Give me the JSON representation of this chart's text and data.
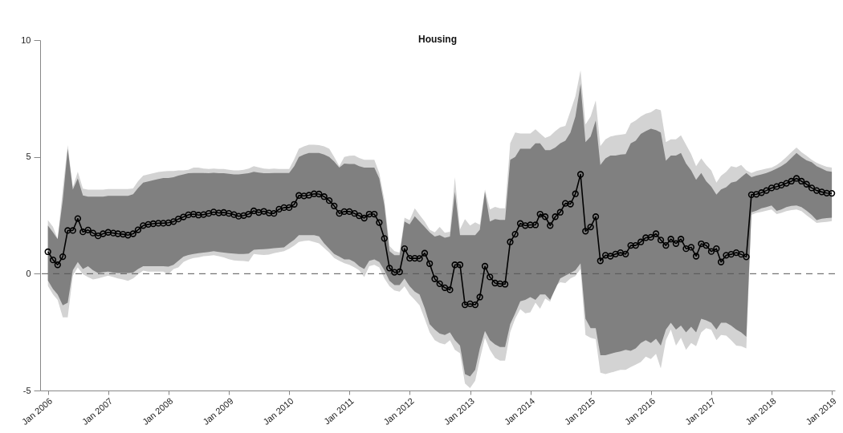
{
  "chart_data": {
    "type": "line",
    "title": "Housing",
    "x": [
      "2006-01",
      "2006-02",
      "2006-03",
      "2006-04",
      "2006-05",
      "2006-06",
      "2006-07",
      "2006-08",
      "2006-09",
      "2006-10",
      "2006-11",
      "2006-12",
      "2007-01",
      "2007-02",
      "2007-03",
      "2007-04",
      "2007-05",
      "2007-06",
      "2007-07",
      "2007-08",
      "2007-09",
      "2007-10",
      "2007-11",
      "2007-12",
      "2008-01",
      "2008-02",
      "2008-03",
      "2008-04",
      "2008-05",
      "2008-06",
      "2008-07",
      "2008-08",
      "2008-09",
      "2008-10",
      "2008-11",
      "2008-12",
      "2009-01",
      "2009-02",
      "2009-03",
      "2009-04",
      "2009-05",
      "2009-06",
      "2009-07",
      "2009-08",
      "2009-09",
      "2009-10",
      "2009-11",
      "2009-12",
      "2010-01",
      "2010-02",
      "2010-03",
      "2010-04",
      "2010-05",
      "2010-06",
      "2010-07",
      "2010-08",
      "2010-09",
      "2010-10",
      "2010-11",
      "2010-12",
      "2011-01",
      "2011-02",
      "2011-03",
      "2011-04",
      "2011-05",
      "2011-06",
      "2011-07",
      "2011-08",
      "2011-09",
      "2011-10",
      "2011-11",
      "2011-12",
      "2012-01",
      "2012-02",
      "2012-03",
      "2012-04",
      "2012-05",
      "2012-06",
      "2012-07",
      "2012-08",
      "2012-09",
      "2012-10",
      "2012-11",
      "2012-12",
      "2013-01",
      "2013-02",
      "2013-03",
      "2013-04",
      "2013-05",
      "2013-06",
      "2013-07",
      "2013-08",
      "2013-09",
      "2013-10",
      "2013-11",
      "2013-12",
      "2014-01",
      "2014-02",
      "2014-03",
      "2014-04",
      "2014-05",
      "2014-06",
      "2014-07",
      "2014-08",
      "2014-09",
      "2014-10",
      "2014-11",
      "2014-12",
      "2015-01",
      "2015-02",
      "2015-03",
      "2015-04",
      "2015-05",
      "2015-06",
      "2015-07",
      "2015-08",
      "2015-09",
      "2015-10",
      "2015-11",
      "2015-12",
      "2016-01",
      "2016-02",
      "2016-03",
      "2016-04",
      "2016-05",
      "2016-06",
      "2016-07",
      "2016-08",
      "2016-09",
      "2016-10",
      "2016-11",
      "2016-12",
      "2017-01",
      "2017-02",
      "2017-03",
      "2017-04",
      "2017-05",
      "2017-06",
      "2017-07",
      "2017-08",
      "2017-09",
      "2017-10",
      "2017-11",
      "2017-12",
      "2018-01",
      "2018-02",
      "2018-03",
      "2018-04",
      "2018-05",
      "2018-06",
      "2018-07",
      "2018-08",
      "2018-09",
      "2018-10",
      "2018-11",
      "2018-12",
      "2019-01"
    ],
    "series": [
      {
        "color": "#d3d3d3",
        "values": [
          null,
          null,
          null,
          null,
          null,
          null,
          null,
          null,
          null,
          null,
          null,
          null,
          null,
          null,
          null,
          null,
          null,
          null,
          null,
          null,
          null,
          null,
          null,
          null,
          null,
          null,
          null,
          null,
          null,
          null,
          null,
          null,
          null,
          null,
          null,
          null,
          null,
          null,
          null,
          null,
          null,
          null,
          null,
          null,
          null,
          null,
          null,
          null,
          null,
          null,
          null,
          null,
          null,
          null,
          null,
          null,
          null,
          null,
          null,
          null,
          null,
          null,
          null,
          null,
          null,
          null,
          null,
          null,
          null,
          null,
          null,
          null,
          null,
          null,
          null,
          null,
          null,
          null,
          null,
          null,
          null,
          null,
          null,
          null,
          null,
          null,
          null,
          null,
          null,
          null,
          null,
          null,
          null,
          null,
          null,
          null,
          null,
          null,
          null,
          null,
          null,
          null,
          null,
          null,
          null,
          null,
          null,
          null,
          null,
          null,
          null,
          null,
          null,
          null,
          null,
          null,
          null,
          null,
          null,
          null,
          null,
          null,
          null,
          null,
          null,
          null,
          null,
          null,
          null,
          null,
          null,
          null,
          null,
          null,
          null,
          null,
          null,
          null,
          null,
          null,
          null,
          null,
          null,
          null,
          null,
          null,
          null,
          null,
          null,
          null,
          null,
          null,
          null,
          null,
          null,
          null,
          null
        ],
        "lower": [
          -0.52,
          -0.89,
          -1.12,
          -1.87,
          -1.87,
          -0.08,
          0.27,
          -0.02,
          -0.14,
          -0.25,
          -0.2,
          -0.14,
          -0.08,
          -0.14,
          -0.2,
          -0.25,
          -0.31,
          -0.2,
          -0.02,
          0.13,
          0.09,
          0.09,
          0.09,
          0.09,
          -0.02,
          0.2,
          0.27,
          0.5,
          0.6,
          0.67,
          0.7,
          0.75,
          0.77,
          0.79,
          0.75,
          0.7,
          0.62,
          0.57,
          0.55,
          0.54,
          0.52,
          0.84,
          0.82,
          0.8,
          0.82,
          0.88,
          0.92,
          0.96,
          1.07,
          1.2,
          1.36,
          1.4,
          1.42,
          1.36,
          1.3,
          1.1,
          0.9,
          0.67,
          0.55,
          0.45,
          0.38,
          0.27,
          0.15,
          -0.14,
          0.32,
          0.38,
          0.27,
          -0.2,
          -0.54,
          -0.72,
          -0.77,
          -0.54,
          -0.89,
          -1.12,
          -1.35,
          -1.93,
          -2.51,
          -2.85,
          -2.97,
          -3.03,
          -2.85,
          -3.26,
          -3.4,
          -4.7,
          -4.9,
          -4.58,
          -3.67,
          -2.74,
          -3.26,
          -3.6,
          -3.72,
          -3.72,
          -2.5,
          -1.93,
          -1.52,
          -1.7,
          -1.65,
          -1.24,
          -1.5,
          -1.06,
          -1.2,
          -0.54,
          -0.37,
          -0.4,
          -0.2,
          -0.1,
          0.21,
          -2.62,
          -2.74,
          -2.8,
          -4.24,
          -4.3,
          -4.24,
          -4.18,
          -4.12,
          -4.12,
          -4.0,
          -3.89,
          -3.78,
          -3.55,
          -3.65,
          -3.43,
          -4.06,
          -2.85,
          -2.39,
          -3.08,
          -2.74,
          -3.26,
          -2.97,
          -3.1,
          -2.51,
          -2.33,
          -2.4,
          -2.85,
          -2.62,
          -2.65,
          -2.85,
          -3.08,
          -3.1,
          -3.2,
          2.52,
          2.6,
          2.65,
          2.7,
          2.75,
          2.55,
          2.6,
          2.68,
          2.72,
          2.75,
          2.68,
          2.5,
          2.34,
          2.17,
          2.2,
          2.22,
          2.25
        ],
        "upper": [
          2.29,
          2.0,
          1.5,
          3.6,
          5.5,
          3.7,
          4.36,
          3.64,
          3.6,
          3.6,
          3.6,
          3.6,
          3.62,
          3.62,
          3.62,
          3.62,
          3.62,
          3.65,
          3.96,
          4.2,
          4.25,
          4.3,
          4.35,
          4.38,
          4.4,
          4.4,
          4.42,
          4.42,
          4.45,
          4.54,
          4.54,
          4.5,
          4.48,
          4.5,
          4.48,
          4.48,
          4.45,
          4.42,
          4.42,
          4.45,
          4.5,
          4.6,
          4.55,
          4.5,
          4.48,
          4.5,
          4.48,
          4.48,
          4.48,
          4.9,
          5.35,
          5.45,
          5.52,
          5.52,
          5.5,
          5.45,
          5.35,
          5.0,
          4.6,
          5.0,
          5.05,
          5.06,
          4.95,
          4.88,
          4.88,
          4.88,
          4.31,
          3.15,
          1.19,
          0.96,
          0.9,
          2.4,
          2.29,
          2.8,
          2.52,
          2.23,
          1.88,
          1.77,
          2.0,
          1.75,
          1.8,
          4.13,
          1.9,
          2.34,
          2.06,
          2.2,
          2.1,
          3.61,
          2.75,
          2.86,
          2.8,
          2.8,
          5.58,
          6.04,
          6.0,
          6.0,
          6.0,
          6.18,
          6.0,
          5.81,
          5.9,
          6.1,
          6.27,
          6.33,
          6.96,
          7.6,
          8.7,
          6.39,
          6.73,
          7.42,
          5.46,
          5.75,
          5.87,
          5.92,
          5.95,
          5.98,
          6.44,
          6.56,
          6.73,
          6.85,
          6.91,
          7.06,
          7.0,
          5.63,
          5.75,
          5.75,
          5.92,
          5.52,
          5.12,
          4.6,
          4.94,
          4.65,
          4.42,
          3.9,
          4.19,
          4.36,
          4.6,
          4.55,
          4.65,
          4.42,
          4.31,
          4.4,
          4.45,
          4.5,
          4.54,
          4.65,
          4.8,
          5.0,
          5.2,
          5.4,
          5.2,
          5.05,
          4.88,
          4.75,
          4.65,
          4.58,
          4.54
        ]
      },
      {
        "color": "#808080",
        "values": [
          null,
          null,
          null,
          null,
          null,
          null,
          null,
          null,
          null,
          null,
          null,
          null,
          null,
          null,
          null,
          null,
          null,
          null,
          null,
          null,
          null,
          null,
          null,
          null,
          null,
          null,
          null,
          null,
          null,
          null,
          null,
          null,
          null,
          null,
          null,
          null,
          null,
          null,
          null,
          null,
          null,
          null,
          null,
          null,
          null,
          null,
          null,
          null,
          null,
          null,
          null,
          null,
          null,
          null,
          null,
          null,
          null,
          null,
          null,
          null,
          null,
          null,
          null,
          null,
          null,
          null,
          null,
          null,
          null,
          null,
          null,
          null,
          null,
          null,
          null,
          null,
          null,
          null,
          null,
          null,
          null,
          null,
          null,
          null,
          null,
          null,
          null,
          null,
          null,
          null,
          null,
          null,
          null,
          null,
          null,
          null,
          null,
          null,
          null,
          null,
          null,
          null,
          null,
          null,
          null,
          null,
          null,
          null,
          null,
          null,
          null,
          null,
          null,
          null,
          null,
          null,
          null,
          null,
          null,
          null,
          null,
          null,
          null,
          null,
          null,
          null,
          null,
          null,
          null,
          null,
          null,
          null,
          null,
          null,
          null,
          null,
          null,
          null,
          null,
          null,
          null,
          null,
          null,
          null,
          null,
          null,
          null,
          null,
          null,
          null,
          null,
          null,
          null,
          null,
          null,
          null,
          null
        ],
        "lower": [
          -0.29,
          -0.66,
          -0.89,
          -1.35,
          -1.24,
          0.15,
          0.5,
          0.2,
          0.32,
          0.15,
          0.03,
          0.06,
          0.09,
          0.05,
          0.03,
          0.03,
          0.03,
          0.05,
          0.2,
          0.32,
          0.32,
          0.32,
          0.32,
          0.32,
          0.3,
          0.38,
          0.55,
          0.73,
          0.8,
          0.84,
          0.88,
          0.9,
          0.93,
          0.96,
          0.93,
          0.9,
          0.88,
          0.86,
          0.84,
          0.84,
          0.86,
          1.02,
          1.04,
          1.05,
          1.07,
          1.09,
          1.11,
          1.13,
          1.3,
          1.45,
          1.65,
          1.65,
          1.65,
          1.65,
          1.6,
          1.3,
          1.07,
          0.84,
          0.73,
          0.61,
          0.61,
          0.5,
          0.32,
          0.2,
          0.55,
          0.61,
          0.5,
          0.15,
          -0.31,
          -0.49,
          -0.49,
          -0.2,
          -0.54,
          -0.77,
          -0.89,
          -1.47,
          -2.16,
          -2.39,
          -2.56,
          -2.62,
          -2.51,
          -2.85,
          -3.08,
          -4.3,
          -4.4,
          -4.12,
          -3.2,
          -2.45,
          -2.85,
          -3.03,
          -3.14,
          -3.14,
          -2.16,
          -1.7,
          -1.18,
          -1.12,
          -1.0,
          -1.12,
          -0.89,
          -0.89,
          -1.12,
          -0.66,
          -0.2,
          -0.08,
          0.03,
          0.15,
          0.44,
          -1.93,
          -2.33,
          -2.33,
          -3.49,
          -3.49,
          -3.43,
          -3.37,
          -3.33,
          -3.26,
          -3.3,
          -3.2,
          -2.97,
          -2.85,
          -2.97,
          -2.79,
          -3.08,
          -2.39,
          -2.1,
          -2.39,
          -2.22,
          -2.51,
          -2.27,
          -2.51,
          -1.93,
          -2.0,
          -2.1,
          -2.39,
          -2.1,
          -2.1,
          -2.22,
          -2.39,
          -2.51,
          -2.7,
          2.63,
          2.7,
          2.8,
          2.85,
          2.92,
          2.69,
          2.75,
          2.85,
          2.9,
          2.92,
          2.85,
          2.7,
          2.52,
          2.29,
          2.35,
          2.38,
          2.4
        ],
        "upper": [
          2.06,
          1.77,
          1.48,
          3.15,
          5.35,
          3.6,
          4.08,
          3.35,
          3.3,
          3.3,
          3.3,
          3.3,
          3.33,
          3.33,
          3.33,
          3.33,
          3.33,
          3.4,
          3.67,
          3.9,
          3.95,
          4.0,
          4.05,
          4.1,
          4.1,
          4.13,
          4.2,
          4.25,
          4.3,
          4.31,
          4.31,
          4.31,
          4.3,
          4.32,
          4.3,
          4.3,
          4.28,
          4.25,
          4.25,
          4.28,
          4.3,
          4.36,
          4.33,
          4.3,
          4.3,
          4.31,
          4.31,
          4.31,
          4.31,
          4.6,
          5.0,
          5.1,
          5.17,
          5.17,
          5.17,
          5.1,
          5.0,
          4.8,
          4.54,
          4.71,
          4.7,
          4.7,
          4.6,
          4.54,
          4.54,
          4.54,
          4.08,
          2.92,
          0.96,
          0.79,
          0.79,
          2.23,
          2.11,
          2.46,
          2.23,
          2.0,
          1.77,
          1.59,
          1.65,
          1.54,
          1.59,
          3.5,
          1.65,
          1.65,
          1.65,
          1.65,
          1.88,
          3.5,
          2.23,
          2.34,
          2.3,
          2.3,
          4.88,
          5.0,
          5.35,
          5.35,
          5.35,
          5.58,
          5.58,
          5.29,
          5.29,
          5.4,
          5.58,
          5.69,
          6.04,
          6.73,
          8.12,
          5.63,
          5.87,
          6.56,
          4.65,
          4.94,
          5.06,
          5.06,
          5.1,
          5.12,
          5.58,
          5.69,
          5.98,
          6.1,
          6.21,
          6.15,
          6.04,
          4.83,
          5.06,
          5.06,
          5.17,
          4.71,
          4.42,
          4.02,
          4.31,
          3.96,
          3.73,
          3.38,
          3.61,
          3.7,
          3.9,
          3.95,
          4.13,
          4.31,
          4.13,
          4.2,
          4.25,
          4.31,
          4.4,
          4.5,
          4.6,
          4.75,
          4.95,
          5.17,
          5.0,
          4.85,
          4.77,
          4.6,
          4.5,
          4.4,
          4.36
        ]
      },
      {
        "color": "#000000",
        "values": [
          0.94,
          0.59,
          0.38,
          0.73,
          1.85,
          1.85,
          2.36,
          1.79,
          1.87,
          1.74,
          1.62,
          1.71,
          1.77,
          1.74,
          1.71,
          1.69,
          1.65,
          1.71,
          1.88,
          2.06,
          2.11,
          2.14,
          2.16,
          2.16,
          2.18,
          2.23,
          2.34,
          2.43,
          2.52,
          2.55,
          2.51,
          2.53,
          2.58,
          2.64,
          2.6,
          2.62,
          2.58,
          2.53,
          2.46,
          2.49,
          2.55,
          2.69,
          2.62,
          2.67,
          2.6,
          2.58,
          2.76,
          2.83,
          2.83,
          2.97,
          3.35,
          3.33,
          3.36,
          3.42,
          3.41,
          3.3,
          3.13,
          2.9,
          2.58,
          2.66,
          2.66,
          2.58,
          2.48,
          2.38,
          2.55,
          2.55,
          2.19,
          1.51,
          0.24,
          0.06,
          0.08,
          1.07,
          0.66,
          0.66,
          0.65,
          0.88,
          0.43,
          -0.22,
          -0.43,
          -0.6,
          -0.69,
          0.38,
          0.38,
          -1.33,
          -1.29,
          -1.33,
          -1.0,
          0.32,
          -0.14,
          -0.4,
          -0.43,
          -0.45,
          1.36,
          1.69,
          2.15,
          2.06,
          2.09,
          2.09,
          2.55,
          2.44,
          2.06,
          2.44,
          2.63,
          3.01,
          2.98,
          3.42,
          4.25,
          1.82,
          2.0,
          2.44,
          0.55,
          0.79,
          0.75,
          0.84,
          0.9,
          0.84,
          1.21,
          1.21,
          1.36,
          1.54,
          1.56,
          1.71,
          1.44,
          1.21,
          1.48,
          1.29,
          1.48,
          1.07,
          1.13,
          0.75,
          1.28,
          1.21,
          0.95,
          1.07,
          0.5,
          0.79,
          0.83,
          0.9,
          0.83,
          0.72,
          3.38,
          3.4,
          3.47,
          3.56,
          3.67,
          3.73,
          3.79,
          3.87,
          3.96,
          4.08,
          3.96,
          3.83,
          3.67,
          3.56,
          3.5,
          3.45,
          3.44
        ]
      }
    ],
    "xlim": [
      "2005-11-15",
      "2019-01-20"
    ],
    "xticks": [
      {
        "value": "2006-01",
        "label": "Jan 2006"
      },
      {
        "value": "2007-01",
        "label": "Jan 2007"
      },
      {
        "value": "2008-01",
        "label": "Jan 2008"
      },
      {
        "value": "2009-01",
        "label": "Jan 2009"
      },
      {
        "value": "2010-01",
        "label": "Jan 2010"
      },
      {
        "value": "2011-01",
        "label": "Jan 2011"
      },
      {
        "value": "2012-01",
        "label": "Jan 2012"
      },
      {
        "value": "2013-01",
        "label": "Jan 2013"
      },
      {
        "value": "2014-01",
        "label": "Jan 2014"
      },
      {
        "value": "2015-01",
        "label": "Jan 2015"
      },
      {
        "value": "2016-01",
        "label": "Jan 2016"
      },
      {
        "value": "2017-01",
        "label": "Jan 2017"
      },
      {
        "value": "2018-01",
        "label": "Jan 2018"
      },
      {
        "value": "2019-01",
        "label": "Jan 2019"
      }
    ],
    "ylim": [
      -5,
      10
    ],
    "yticks": [
      -5,
      0,
      5,
      10
    ],
    "ref_lines": [
      {
        "axis": "y",
        "value": 0,
        "color": "#555555",
        "line_style": "dashed"
      }
    ],
    "marker": "circle",
    "line_style": "solid",
    "grid": false
  }
}
